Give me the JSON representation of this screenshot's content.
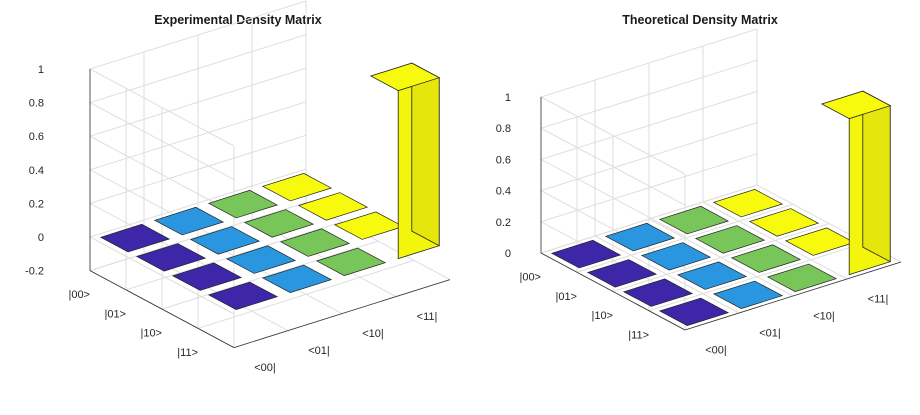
{
  "chart_data": [
    {
      "type": "bar3d",
      "title": "Experimental Density Matrix",
      "row_labels": [
        "|00>",
        "|01>",
        "|10>",
        "|11>"
      ],
      "col_labels": [
        "<00|",
        "<01|",
        "<10|",
        "<11|"
      ],
      "zlim": [
        -0.2,
        1
      ],
      "z_ticks": [
        "1",
        "0.8",
        "0.6",
        "0.4",
        "0.2",
        "0",
        "-0.2"
      ],
      "values": [
        [
          0.0,
          0.0,
          0.0,
          0.0
        ],
        [
          0.0,
          0.0,
          0.0,
          0.0
        ],
        [
          0.0,
          0.0,
          0.0,
          0.0
        ],
        [
          0.0,
          0.0,
          0.0,
          1.0
        ]
      ],
      "colors": [
        [
          "#3e26a8",
          "#2b96e0",
          "#78c55a",
          "#f8fa0d"
        ],
        [
          "#3e26a8",
          "#2b96e0",
          "#78c55a",
          "#f8fa0d"
        ],
        [
          "#3e26a8",
          "#2b96e0",
          "#78c55a",
          "#f8fa0d"
        ],
        [
          "#3e26a8",
          "#2b96e0",
          "#78c55a",
          "#f8fa0d"
        ]
      ]
    },
    {
      "type": "bar3d",
      "title": "Theoretical Density Matrix",
      "row_labels": [
        "|00>",
        "|01>",
        "|10>",
        "|11>"
      ],
      "col_labels": [
        "<00|",
        "<01|",
        "<10|",
        "<11|"
      ],
      "zlim": [
        0,
        1
      ],
      "z_ticks": [
        "1",
        "0.8",
        "0.6",
        "0.4",
        "0.2",
        "0"
      ],
      "values": [
        [
          0.0,
          0.0,
          0.0,
          0.0
        ],
        [
          0.0,
          0.0,
          0.0,
          0.0
        ],
        [
          0.0,
          0.0,
          0.0,
          0.0
        ],
        [
          0.0,
          0.0,
          0.0,
          1.0
        ]
      ],
      "colors": [
        [
          "#3e26a8",
          "#2b96e0",
          "#78c55a",
          "#f8fa0d"
        ],
        [
          "#3e26a8",
          "#2b96e0",
          "#78c55a",
          "#f8fa0d"
        ],
        [
          "#3e26a8",
          "#2b96e0",
          "#78c55a",
          "#f8fa0d"
        ],
        [
          "#3e26a8",
          "#2b96e0",
          "#78c55a",
          "#f8fa0d"
        ]
      ]
    }
  ]
}
